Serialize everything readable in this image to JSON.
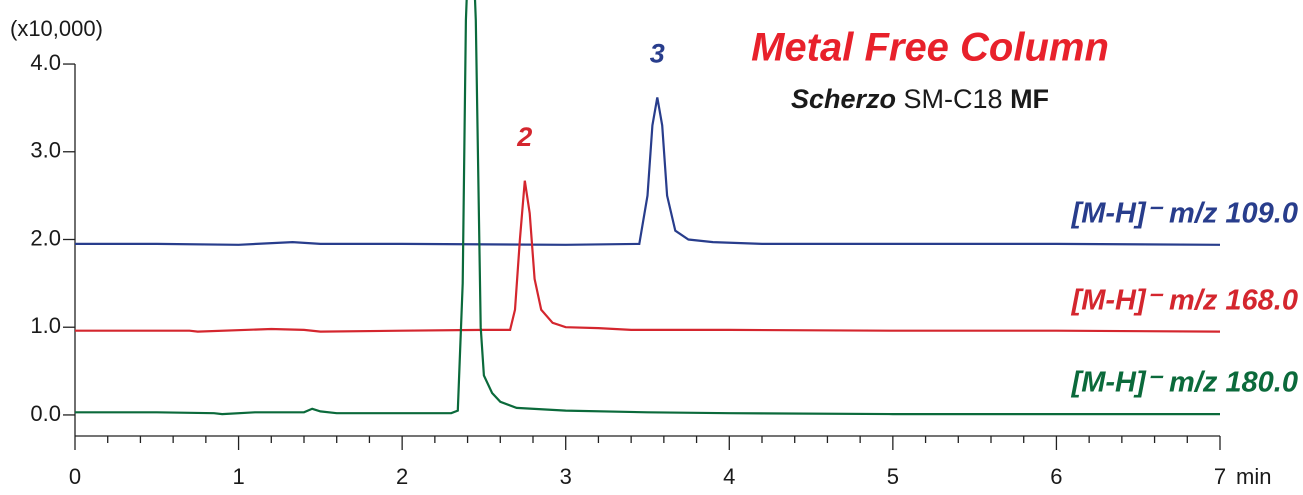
{
  "chart_data": {
    "type": "line",
    "title": "Metal Free Column",
    "subtitle": [
      "Scherzo",
      "SM-C18",
      "MF"
    ],
    "y_label": "(x10,000)",
    "x_label": "min",
    "xlim": [
      0,
      7
    ],
    "xticks": [
      0,
      1,
      2,
      3,
      4,
      5,
      6,
      7
    ],
    "xminorticks": [
      0.2,
      0.4,
      0.6,
      0.8,
      1.2,
      1.4,
      1.6,
      1.8,
      2.2,
      2.4,
      2.6,
      2.8,
      3.2,
      3.4,
      3.6,
      3.8,
      4.2,
      4.4,
      4.6,
      4.8,
      5.2,
      5.4,
      5.6,
      5.8,
      6.2,
      6.4,
      6.6,
      6.8
    ],
    "ylim": [
      -0.24,
      4.73
    ],
    "yticks": [
      {
        "value": 0,
        "label": "0.0"
      },
      {
        "value": 1,
        "label": "1.0"
      },
      {
        "value": 2,
        "label": "2.0"
      },
      {
        "value": 3,
        "label": "3.0"
      },
      {
        "value": 4,
        "label": "4.0"
      }
    ],
    "series": [
      {
        "name": "[M-H]⁻ m/z 109.0",
        "color": "#283d8c",
        "peak_label": "3",
        "x": [
          0,
          0.5,
          1.0,
          1.33,
          1.5,
          2,
          3,
          3.45,
          3.5,
          3.53,
          3.56,
          3.59,
          3.62,
          3.67,
          3.75,
          3.9,
          4.2,
          5,
          6,
          7
        ],
        "values": [
          1.95,
          1.95,
          1.94,
          1.97,
          1.95,
          1.95,
          1.94,
          1.95,
          2.5,
          3.3,
          3.62,
          3.3,
          2.5,
          2.1,
          2.0,
          1.97,
          1.95,
          1.95,
          1.95,
          1.94
        ]
      },
      {
        "name": "[M-H]⁻ m/z 168.0",
        "color": "#d4262e",
        "peak_label": "2",
        "x": [
          0,
          0.7,
          0.75,
          1.2,
          1.4,
          1.5,
          2.0,
          2.5,
          2.66,
          2.69,
          2.72,
          2.75,
          2.78,
          2.81,
          2.85,
          2.92,
          3.0,
          3.2,
          3.4,
          4,
          5,
          6,
          7
        ],
        "values": [
          0.96,
          0.96,
          0.95,
          0.98,
          0.97,
          0.95,
          0.96,
          0.97,
          0.97,
          1.2,
          2.0,
          2.67,
          2.3,
          1.55,
          1.2,
          1.05,
          1.0,
          0.99,
          0.97,
          0.97,
          0.96,
          0.96,
          0.95
        ]
      },
      {
        "name": "[M-H]⁻ m/z 180.0",
        "color": "#0b6a3b",
        "x": [
          0,
          0.5,
          0.85,
          0.9,
          1.1,
          1.4,
          1.45,
          1.5,
          1.6,
          2.0,
          2.3,
          2.34,
          2.37,
          2.39,
          2.42,
          2.45,
          2.48,
          2.5,
          2.55,
          2.6,
          2.7,
          3.0,
          3.5,
          4,
          5,
          6,
          7
        ],
        "values": [
          0.03,
          0.03,
          0.02,
          0.01,
          0.03,
          0.03,
          0.07,
          0.04,
          0.02,
          0.02,
          0.02,
          0.05,
          1.5,
          4.5,
          6.0,
          4.5,
          1.0,
          0.45,
          0.25,
          0.15,
          0.08,
          0.05,
          0.03,
          0.02,
          0.01,
          0.01,
          0.01
        ]
      }
    ]
  }
}
